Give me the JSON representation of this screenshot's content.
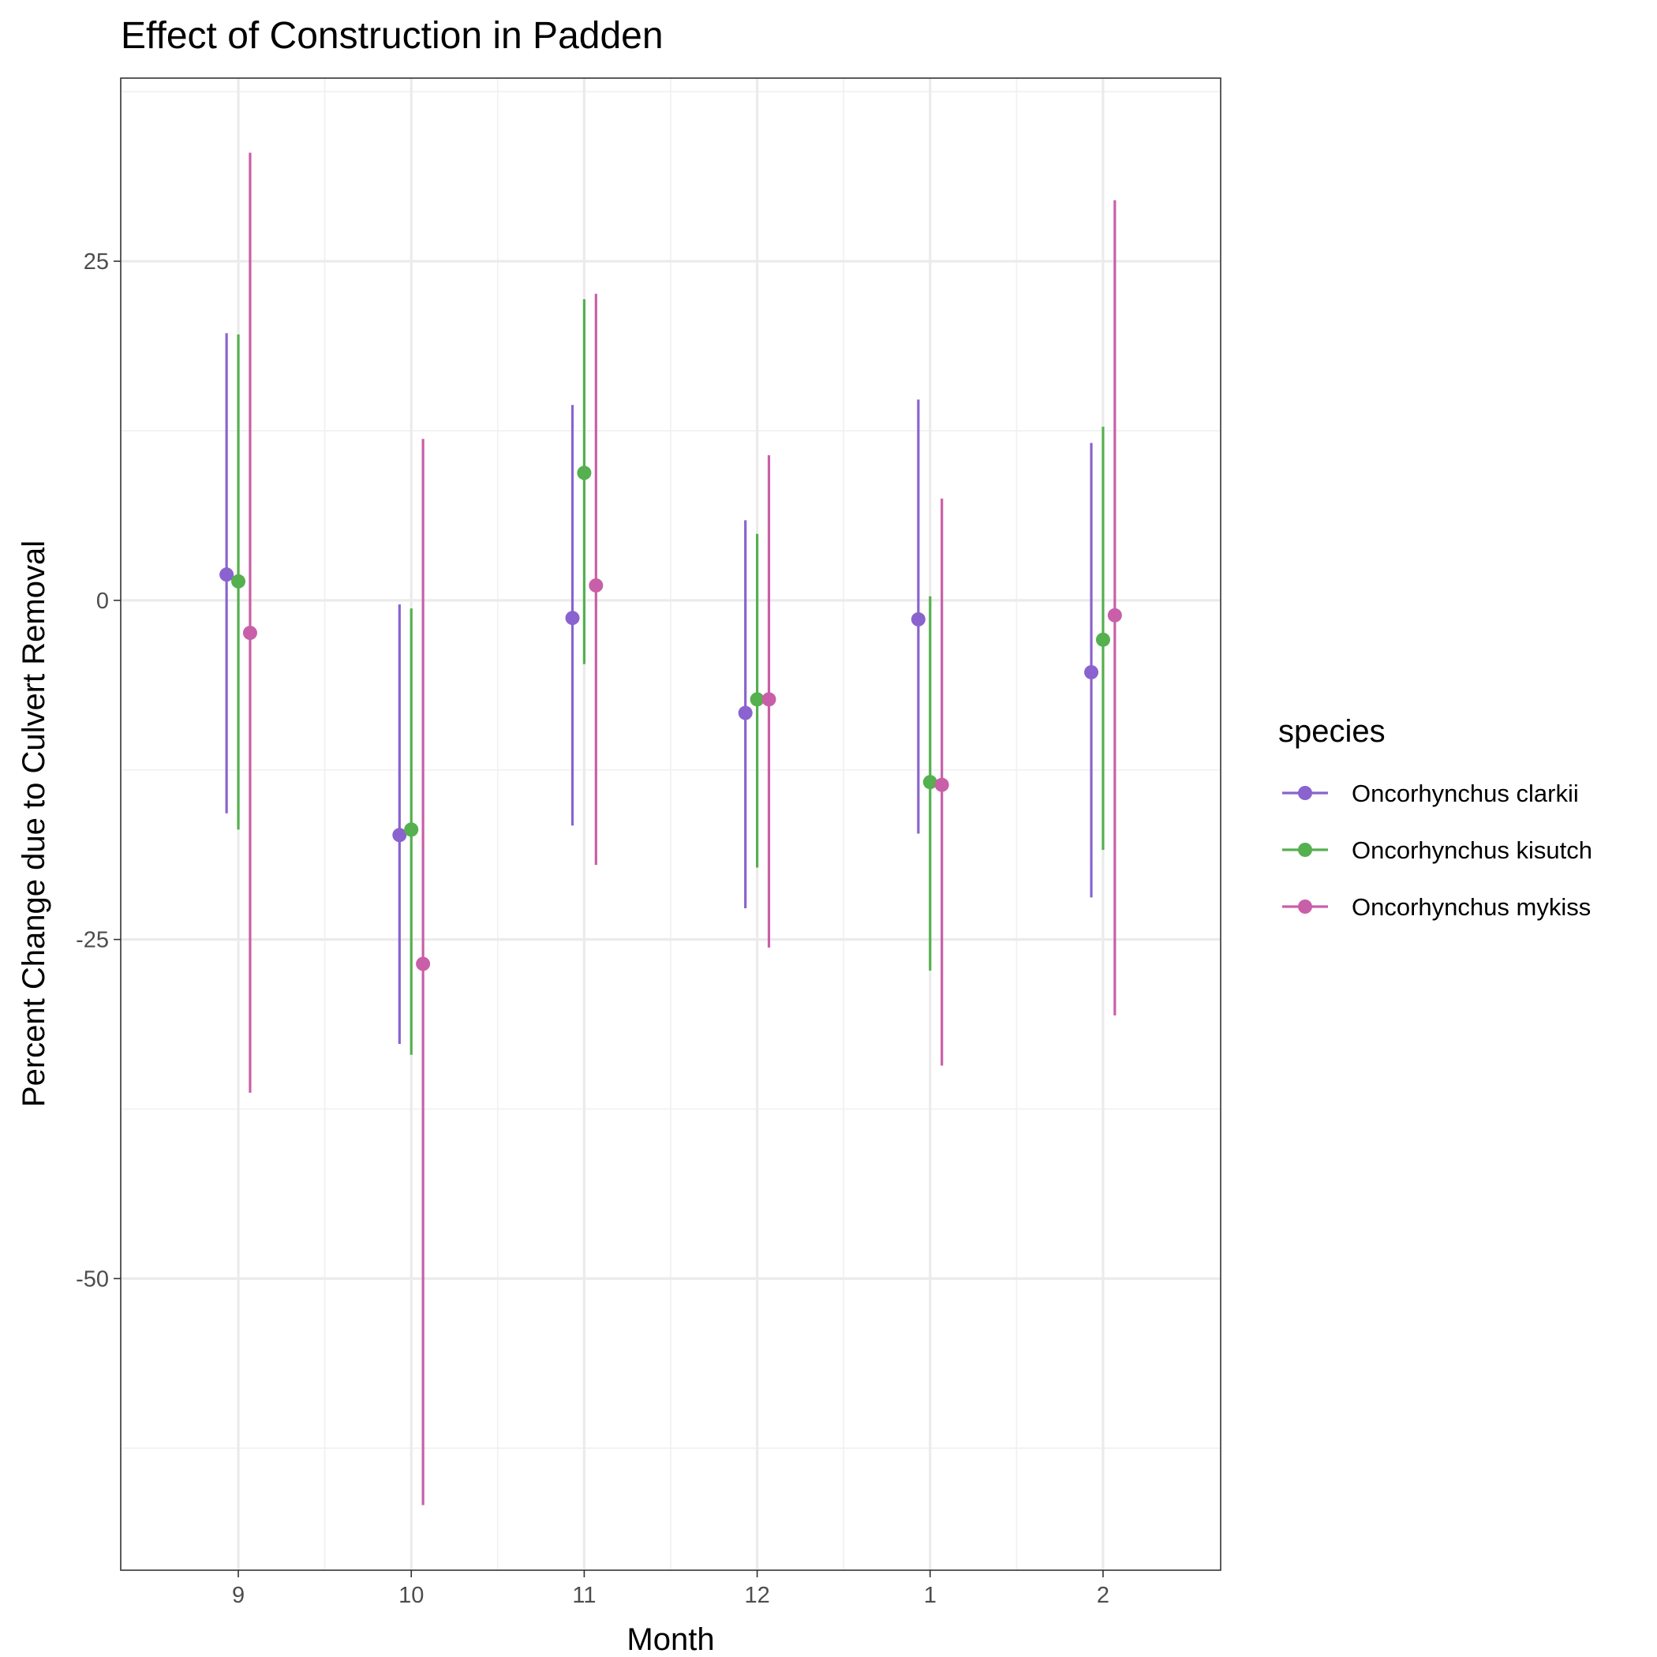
{
  "chart_data": {
    "type": "errorbar",
    "title": "Effect of Construction in Padden",
    "xlabel": "Month",
    "ylabel": "Percent Change due to Culvert Removal",
    "categories": [
      "9",
      "10",
      "11",
      "12",
      "1",
      "2"
    ],
    "ylim": [
      -71.5,
      38.5
    ],
    "yticks": [
      25,
      0,
      -25,
      -50
    ],
    "ytick_labels": [
      "25",
      "0",
      "-25",
      "-50"
    ],
    "grid": true,
    "legend": {
      "title": "species",
      "position": "right"
    },
    "series": [
      {
        "name": "Oncorhynchus clarkii",
        "color": "#8a63cf",
        "values": [
          1.9,
          -17.3,
          -1.3,
          -8.3,
          -1.4,
          -5.3
        ],
        "lower": [
          -15.7,
          -32.7,
          -16.6,
          -22.7,
          -17.2,
          -21.9
        ],
        "upper": [
          19.7,
          -0.3,
          14.4,
          5.9,
          14.8,
          11.6
        ]
      },
      {
        "name": "Oncorhynchus kisutch",
        "color": "#55b04f",
        "values": [
          1.4,
          -16.9,
          9.4,
          -7.3,
          -13.4,
          -2.9
        ],
        "lower": [
          -16.9,
          -33.5,
          -4.7,
          -19.7,
          -27.3,
          -18.4
        ],
        "upper": [
          19.6,
          -0.6,
          22.2,
          4.9,
          0.3,
          12.8
        ]
      },
      {
        "name": "Oncorhynchus mykiss",
        "color": "#c95fa8",
        "values": [
          -2.4,
          -26.8,
          1.1,
          -7.3,
          -13.6,
          -1.1
        ],
        "lower": [
          -36.3,
          -66.7,
          -19.5,
          -25.6,
          -34.3,
          -30.6
        ],
        "upper": [
          33.0,
          11.9,
          22.6,
          10.7,
          7.5,
          29.5
        ]
      }
    ]
  }
}
